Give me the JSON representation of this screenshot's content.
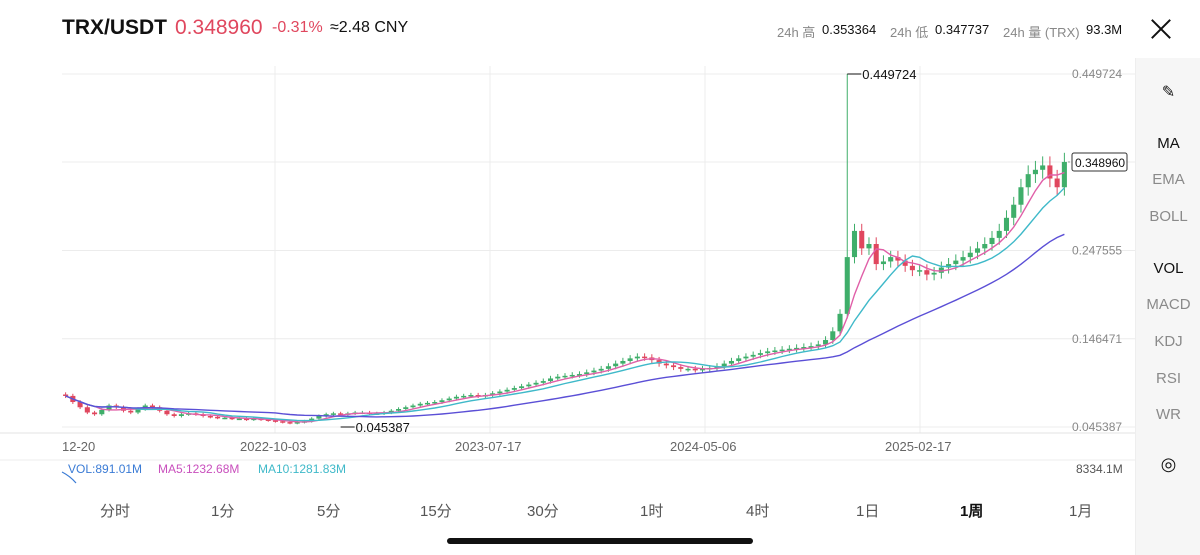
{
  "header": {
    "pair": "TRX/USDT",
    "price": "0.348960",
    "change": "-0.31%",
    "cny": "≈2.48 CNY",
    "stats": [
      {
        "label": "24h 高",
        "value": "0.353364"
      },
      {
        "label": "24h 低",
        "value": "0.347737"
      },
      {
        "label": "24h 量 (TRX)",
        "value": "93.3M"
      }
    ]
  },
  "sidebar": {
    "items": [
      {
        "label": "MA",
        "active": true
      },
      {
        "label": "EMA",
        "active": false
      },
      {
        "label": "BOLL",
        "active": false
      },
      {
        "label": "VOL",
        "active": true
      },
      {
        "label": "MACD",
        "active": false
      },
      {
        "label": "KDJ",
        "active": false
      },
      {
        "label": "RSI",
        "active": false
      },
      {
        "label": "WR",
        "active": false
      }
    ]
  },
  "timeframes": {
    "items": [
      "分时",
      "1分",
      "5分",
      "15分",
      "30分",
      "1时",
      "4时",
      "1日",
      "1周",
      "1月"
    ],
    "active": "1周"
  },
  "chart_data": {
    "type": "candlestick",
    "x_tick_labels": [
      "12-20",
      "2022-10-03",
      "2023-07-17",
      "2024-05-06",
      "2025-02-17"
    ],
    "y_tick_labels": [
      "0.449724",
      "0.348960",
      "0.247555",
      "0.146471",
      "0.045387"
    ],
    "ylim": [
      0.045387,
      0.449724
    ],
    "grid": true,
    "annotations": {
      "max": "0.449724",
      "min": "0.045387",
      "last_price": "0.348960"
    },
    "max_value": 0.449724,
    "min_value": 0.045387,
    "last_value": 0.34896,
    "close_series": [
      0.081,
      0.074,
      0.068,
      0.062,
      0.06,
      0.065,
      0.07,
      0.068,
      0.064,
      0.062,
      0.066,
      0.07,
      0.068,
      0.064,
      0.06,
      0.058,
      0.06,
      0.061,
      0.06,
      0.058,
      0.057,
      0.056,
      0.056,
      0.055,
      0.055,
      0.054,
      0.055,
      0.054,
      0.053,
      0.052,
      0.051,
      0.05,
      0.051,
      0.052,
      0.055,
      0.058,
      0.06,
      0.061,
      0.06,
      0.061,
      0.062,
      0.062,
      0.061,
      0.061,
      0.062,
      0.064,
      0.066,
      0.068,
      0.07,
      0.072,
      0.073,
      0.074,
      0.076,
      0.078,
      0.08,
      0.081,
      0.082,
      0.081,
      0.082,
      0.084,
      0.086,
      0.088,
      0.09,
      0.092,
      0.094,
      0.096,
      0.098,
      0.101,
      0.103,
      0.104,
      0.105,
      0.106,
      0.108,
      0.11,
      0.112,
      0.115,
      0.118,
      0.121,
      0.124,
      0.126,
      0.125,
      0.122,
      0.118,
      0.116,
      0.114,
      0.112,
      0.112,
      0.111,
      0.112,
      0.113,
      0.115,
      0.118,
      0.121,
      0.124,
      0.126,
      0.128,
      0.13,
      0.132,
      0.133,
      0.134,
      0.135,
      0.136,
      0.137,
      0.138,
      0.14,
      0.145,
      0.155,
      0.175,
      0.24,
      0.27,
      0.25,
      0.255,
      0.232,
      0.235,
      0.24,
      0.236,
      0.23,
      0.225,
      0.225,
      0.22,
      0.222,
      0.228,
      0.232,
      0.236,
      0.24,
      0.245,
      0.25,
      0.255,
      0.262,
      0.27,
      0.285,
      0.3,
      0.32,
      0.335,
      0.34,
      0.345,
      0.33,
      0.32,
      0.349
    ],
    "series": [
      {
        "name": "VOL",
        "value": "891.01M",
        "color": "#3a7bd5"
      },
      {
        "name": "MA5",
        "value": "1232.68M",
        "color": "#c94fbd"
      },
      {
        "name": "MA10",
        "value": "1281.83M",
        "color": "#3fb9c9"
      }
    ],
    "vol_axis_label": "8334.1M"
  }
}
